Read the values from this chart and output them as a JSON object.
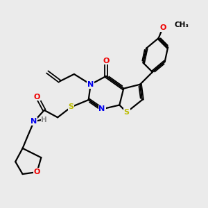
{
  "background_color": "#ebebeb",
  "atom_colors": {
    "N": "#0000ee",
    "O": "#ee0000",
    "S": "#bbbb00",
    "H": "#888888"
  },
  "bond_color": "#000000",
  "bond_width": 1.6,
  "figsize": [
    3.0,
    3.0
  ],
  "dpi": 100,
  "xlim": [
    0,
    10
  ],
  "ylim": [
    0,
    10
  ]
}
